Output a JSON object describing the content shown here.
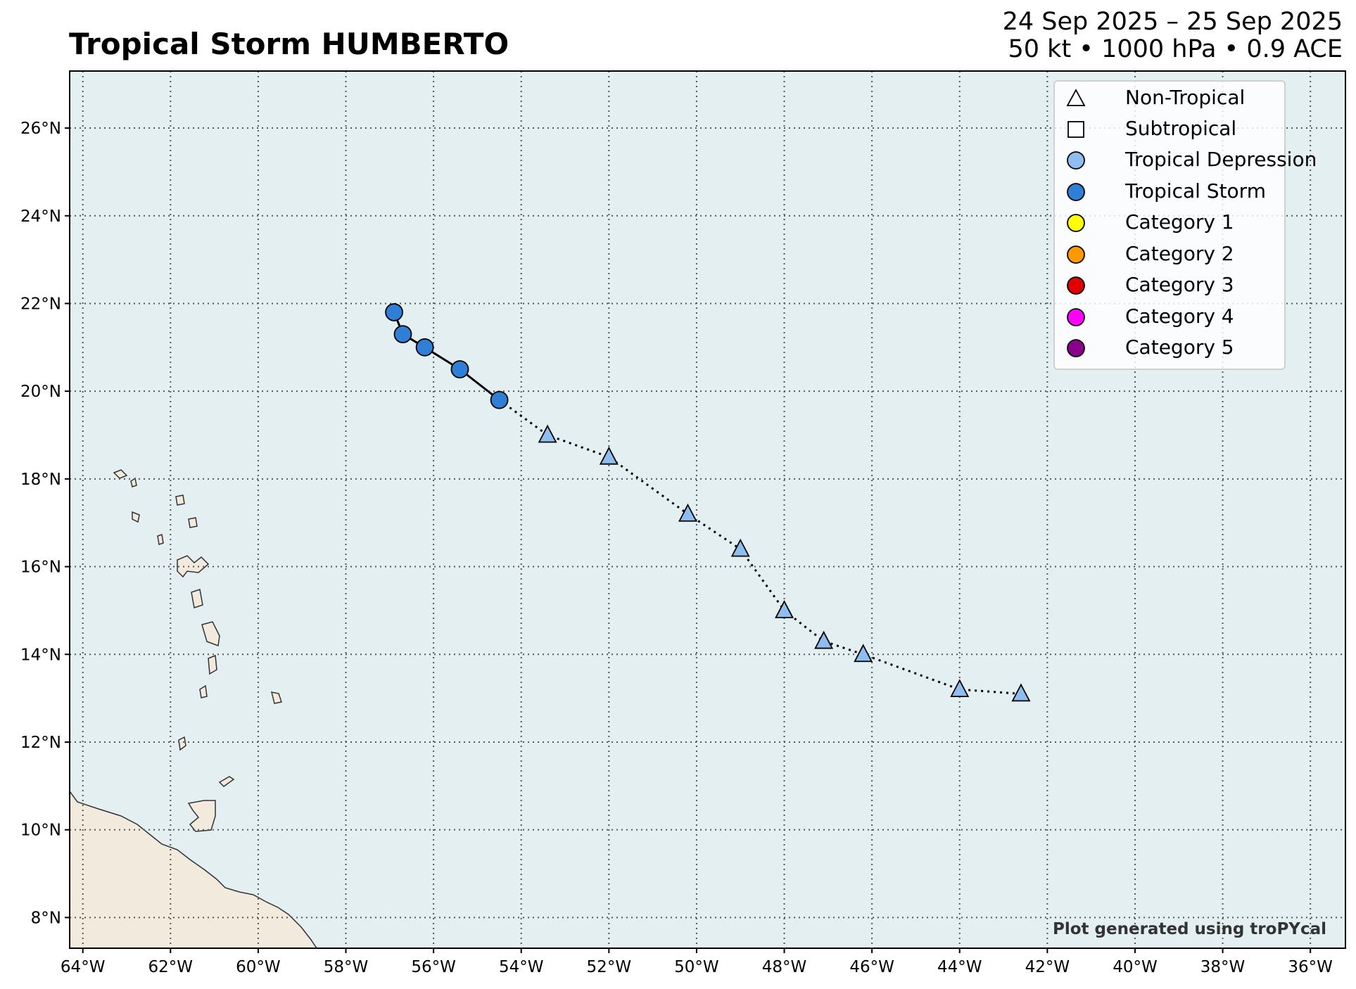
{
  "header": {
    "title": "Tropical Storm HUMBERTO",
    "dates": "24 Sep 2025 – 25 Sep 2025",
    "stats": "50 kt • 1000 hPa • 0.9 ACE"
  },
  "map": {
    "lon_range": [
      -64.3,
      -35.2
    ],
    "lat_range": [
      7.3,
      27.3
    ],
    "ocean_color": "#e3eff1",
    "land_color": "#f3eade",
    "grid": true,
    "lon_ticks": [
      "64°W",
      "62°W",
      "60°W",
      "58°W",
      "56°W",
      "54°W",
      "52°W",
      "50°W",
      "48°W",
      "46°W",
      "44°W",
      "42°W",
      "40°W",
      "38°W",
      "36°W"
    ],
    "lat_ticks": [
      "8°N",
      "10°N",
      "12°N",
      "14°N",
      "16°N",
      "18°N",
      "20°N",
      "22°N",
      "24°N",
      "26°N"
    ]
  },
  "track": [
    {
      "lon": -42.6,
      "lat": 13.1,
      "type": "Non-Tropical",
      "intensity": "Tropical Depression"
    },
    {
      "lon": -44.0,
      "lat": 13.2,
      "type": "Non-Tropical",
      "intensity": "Tropical Depression"
    },
    {
      "lon": -46.2,
      "lat": 14.0,
      "type": "Non-Tropical",
      "intensity": "Tropical Depression"
    },
    {
      "lon": -47.1,
      "lat": 14.3,
      "type": "Non-Tropical",
      "intensity": "Tropical Depression"
    },
    {
      "lon": -48.0,
      "lat": 15.0,
      "type": "Non-Tropical",
      "intensity": "Tropical Depression"
    },
    {
      "lon": -49.0,
      "lat": 16.4,
      "type": "Non-Tropical",
      "intensity": "Tropical Depression"
    },
    {
      "lon": -50.2,
      "lat": 17.2,
      "type": "Non-Tropical",
      "intensity": "Tropical Depression"
    },
    {
      "lon": -52.0,
      "lat": 18.5,
      "type": "Non-Tropical",
      "intensity": "Tropical Depression"
    },
    {
      "lon": -53.4,
      "lat": 19.0,
      "type": "Non-Tropical",
      "intensity": "Tropical Depression"
    },
    {
      "lon": -54.5,
      "lat": 19.8,
      "type": "Tropical",
      "intensity": "Tropical Storm"
    },
    {
      "lon": -55.4,
      "lat": 20.5,
      "type": "Tropical",
      "intensity": "Tropical Storm"
    },
    {
      "lon": -56.2,
      "lat": 21.0,
      "type": "Tropical",
      "intensity": "Tropical Storm"
    },
    {
      "lon": -56.7,
      "lat": 21.3,
      "type": "Tropical",
      "intensity": "Tropical Storm"
    },
    {
      "lon": -56.9,
      "lat": 21.8,
      "type": "Tropical",
      "intensity": "Tropical Storm"
    }
  ],
  "legend": [
    {
      "label": "Non-Tropical",
      "marker": "triangle",
      "color": "#ffffff"
    },
    {
      "label": "Subtropical",
      "marker": "square",
      "color": "#ffffff"
    },
    {
      "label": "Tropical Depression",
      "marker": "circle",
      "color": "#8fbdf0"
    },
    {
      "label": "Tropical Storm",
      "marker": "circle",
      "color": "#2f7fd6"
    },
    {
      "label": "Category 1",
      "marker": "circle",
      "color": "#ffff00"
    },
    {
      "label": "Category 2",
      "marker": "circle",
      "color": "#ff9900"
    },
    {
      "label": "Category 3",
      "marker": "circle",
      "color": "#e00000"
    },
    {
      "label": "Category 4",
      "marker": "circle",
      "color": "#ff00ff"
    },
    {
      "label": "Category 5",
      "marker": "circle",
      "color": "#8b008b"
    }
  ],
  "credit": "Plot generated using troPYcal"
}
